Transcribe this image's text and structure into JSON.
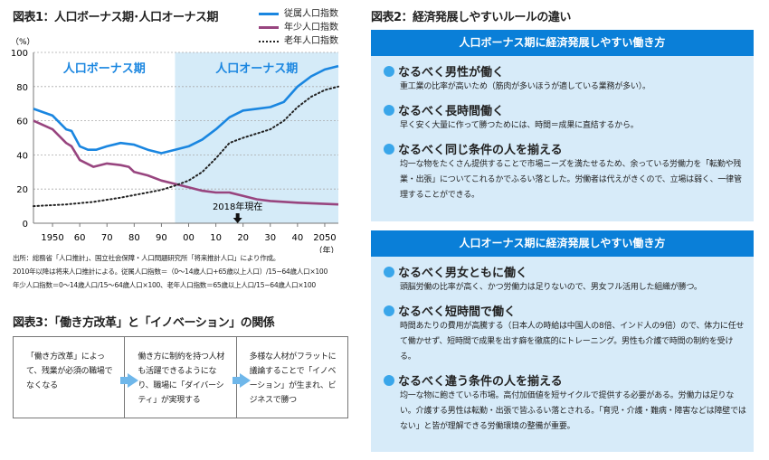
{
  "fig1": {
    "title": "図表1：人口ボーナス期･人口オーナス期",
    "source": [
      "出所：総務省「人口推計」、国立社会保障・人口問題研究所「将来推計人口」により作成。",
      "2010年以降は将来人口推計による。従属人口指数＝（0～14歳人口+65歳以上人口）/15~64歳人口×100",
      "年少人口指数＝0～14歳人口/15～64歳人口×100、老年人口指数＝65歳以上人口/15~64歳人口×100"
    ]
  },
  "chart_data": {
    "type": "line",
    "title": "図表1：人口ボーナス期･人口オーナス期",
    "ylabel": "（%）",
    "xlabel": "（年）",
    "ylim": [
      0,
      100
    ],
    "xlim": [
      1943,
      2055
    ],
    "yticks": [
      0,
      20,
      40,
      60,
      80,
      100
    ],
    "xticks": [
      {
        "v": 1950,
        "l": "1950"
      },
      {
        "v": 1960,
        "l": "60"
      },
      {
        "v": 1970,
        "l": "70"
      },
      {
        "v": 1980,
        "l": "80"
      },
      {
        "v": 1990,
        "l": "90"
      },
      {
        "v": 2000,
        "l": "00"
      },
      {
        "v": 2010,
        "l": "10"
      },
      {
        "v": 2020,
        "l": "20"
      },
      {
        "v": 2030,
        "l": "30"
      },
      {
        "v": 2040,
        "l": "40"
      },
      {
        "v": 2050,
        "l": "2050"
      }
    ],
    "regions": [
      {
        "label": "人口ボーナス期",
        "from": 1943,
        "to": 1995
      },
      {
        "label": "人口オーナス期",
        "from": 1995,
        "to": 2055,
        "color": "#d5ebf8"
      }
    ],
    "annotation": {
      "label": "2018年現在",
      "x": 2018
    },
    "series": [
      {
        "name": "従属人口指数",
        "color": "#1a86e0",
        "style": "solid",
        "x": [
          1943,
          1950,
          1955,
          1957,
          1960,
          1963,
          1966,
          1970,
          1975,
          1980,
          1985,
          1990,
          1995,
          2000,
          2005,
          2010,
          2015,
          2020,
          2025,
          2030,
          2035,
          2040,
          2045,
          2050,
          2055
        ],
        "y": [
          67,
          63,
          55,
          54,
          45,
          43,
          43,
          45,
          47,
          46,
          43,
          41,
          43,
          45,
          49,
          55,
          62,
          66,
          67,
          68,
          71,
          80,
          86,
          90,
          92
        ]
      },
      {
        "name": "年少人口指数",
        "color": "#98457f",
        "style": "solid",
        "x": [
          1943,
          1950,
          1955,
          1957,
          1960,
          1965,
          1970,
          1975,
          1978,
          1980,
          1985,
          1990,
          1995,
          2000,
          2005,
          2010,
          2015,
          2020,
          2025,
          2030,
          2040,
          2055
        ],
        "y": [
          60,
          55,
          47,
          45,
          37,
          33,
          35,
          34,
          33,
          30,
          28,
          25,
          23,
          21,
          19,
          18,
          18,
          16,
          14,
          13,
          12,
          11
        ]
      },
      {
        "name": "老年人口指数",
        "color": "#222222",
        "style": "dotted",
        "x": [
          1943,
          1955,
          1965,
          1975,
          1985,
          1990,
          1995,
          2000,
          2005,
          2010,
          2015,
          2020,
          2030,
          2035,
          2040,
          2045,
          2050,
          2055
        ],
        "y": [
          10,
          11,
          12.5,
          15,
          18,
          19.5,
          22,
          25,
          30,
          38,
          47,
          50,
          55,
          60,
          68,
          74,
          78,
          80
        ]
      }
    ]
  },
  "fig2": {
    "title": "図表2：経済発展しやすいルールの違い",
    "panels": [
      {
        "header": "人口ボーナス期に経済発展しやすい働き方",
        "items": [
          {
            "h": "なるべく男性が働く",
            "t": "重工業の比率が高いため（筋肉が多いほうが適している業務が多い）。"
          },
          {
            "h": "なるべく長時間働く",
            "t": "早く安く大量に作って勝つためには、時間＝成果に直結するから。"
          },
          {
            "h": "なるべく同じ条件の人を揃える",
            "t": "均一な物をたくさん提供することで市場ニーズを満たせるため、余っている労働力を「転勤や残業・出張」についてこれるかでふるい落とした。労働者は代えがきくので、立場は弱く、一律管理することができる。"
          }
        ]
      },
      {
        "header": "人口オーナス期に経済発展しやすい働き方",
        "items": [
          {
            "h": "なるべく男女ともに働く",
            "t": "頭脳労働の比率が高く、かつ労働力は足りないので、男女フル活用した組織が勝つ。"
          },
          {
            "h": "なるべく短時間で働く",
            "t": "時間あたりの費用が高騰する（日本人の時給は中国人の8倍、インド人の9倍）ので、体力に任せて働かせず、短時間で成果を出す癖を徹底的にトレーニング。男性も介護で時間の制約を受ける。"
          },
          {
            "h": "なるべく違う条件の人を揃える",
            "t": "均一な物に飽きている市場。高付加価値を短サイクルで提供する必要がある。労働力は足りない。介護する男性は転勤・出張で皆ふるい落とされる。「育児・介護・難病・障害などは障壁ではない」と皆が理解できる労働環境の整備が重要。"
          }
        ]
      }
    ]
  },
  "fig3": {
    "title": "図表3：「働き方改革」と「イノベーション」の関係",
    "cells": [
      "「働き方改革」によって、残業が必須の職場でなくなる",
      "働き方に制約を持つ人材も活躍できるようになり、職場に「ダイバーシティ」が実現する",
      "多様な人材がフラットに議論することで「イノベーション」が生まれ、ビジネスで勝つ"
    ]
  }
}
